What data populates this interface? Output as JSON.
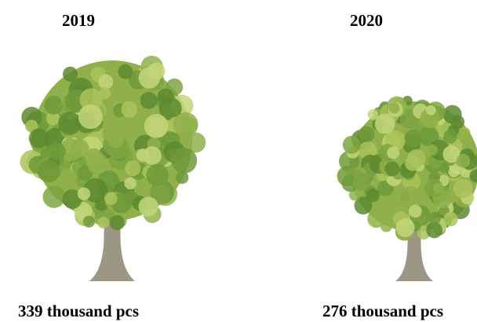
{
  "chart_data": {
    "type": "pictorial",
    "categories": [
      "2019",
      "2020"
    ],
    "values": [
      339,
      276
    ],
    "value_labels": [
      "339 thousand pcs",
      "276 thousand pcs"
    ],
    "colors": [
      "#8fb04a",
      "#8fb04a"
    ]
  }
}
